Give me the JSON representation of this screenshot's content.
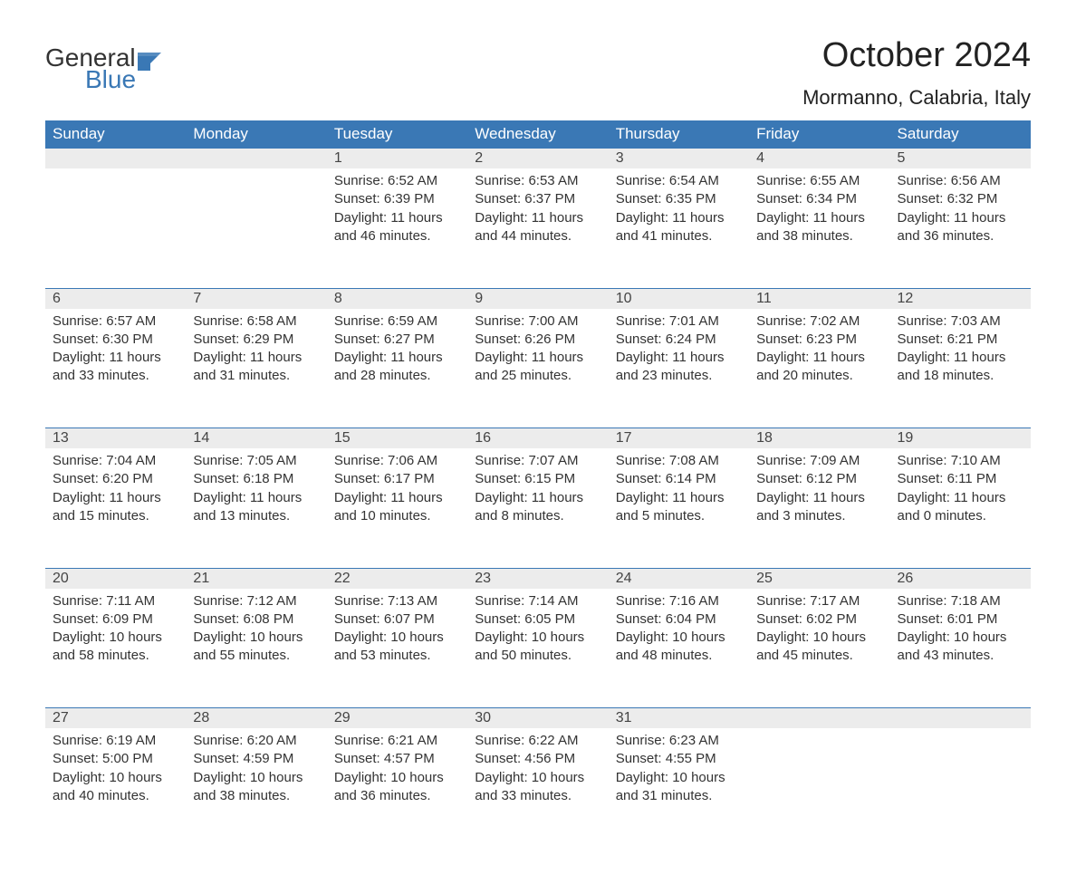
{
  "logo": {
    "word1": "General",
    "word2": "Blue"
  },
  "title": "October 2024",
  "location": "Mormanno, Calabria, Italy",
  "colors": {
    "header_bg": "#3a78b5",
    "header_text": "#ffffff",
    "daynum_bg": "#ececec",
    "border": "#3a78b5",
    "text": "#333333",
    "logo_blue": "#3a78b5",
    "background": "#ffffff"
  },
  "day_headers": [
    "Sunday",
    "Monday",
    "Tuesday",
    "Wednesday",
    "Thursday",
    "Friday",
    "Saturday"
  ],
  "weeks": [
    [
      null,
      null,
      {
        "n": "1",
        "sunrise": "6:52 AM",
        "sunset": "6:39 PM",
        "daylight": "11 hours and 46 minutes."
      },
      {
        "n": "2",
        "sunrise": "6:53 AM",
        "sunset": "6:37 PM",
        "daylight": "11 hours and 44 minutes."
      },
      {
        "n": "3",
        "sunrise": "6:54 AM",
        "sunset": "6:35 PM",
        "daylight": "11 hours and 41 minutes."
      },
      {
        "n": "4",
        "sunrise": "6:55 AM",
        "sunset": "6:34 PM",
        "daylight": "11 hours and 38 minutes."
      },
      {
        "n": "5",
        "sunrise": "6:56 AM",
        "sunset": "6:32 PM",
        "daylight": "11 hours and 36 minutes."
      }
    ],
    [
      {
        "n": "6",
        "sunrise": "6:57 AM",
        "sunset": "6:30 PM",
        "daylight": "11 hours and 33 minutes."
      },
      {
        "n": "7",
        "sunrise": "6:58 AM",
        "sunset": "6:29 PM",
        "daylight": "11 hours and 31 minutes."
      },
      {
        "n": "8",
        "sunrise": "6:59 AM",
        "sunset": "6:27 PM",
        "daylight": "11 hours and 28 minutes."
      },
      {
        "n": "9",
        "sunrise": "7:00 AM",
        "sunset": "6:26 PM",
        "daylight": "11 hours and 25 minutes."
      },
      {
        "n": "10",
        "sunrise": "7:01 AM",
        "sunset": "6:24 PM",
        "daylight": "11 hours and 23 minutes."
      },
      {
        "n": "11",
        "sunrise": "7:02 AM",
        "sunset": "6:23 PM",
        "daylight": "11 hours and 20 minutes."
      },
      {
        "n": "12",
        "sunrise": "7:03 AM",
        "sunset": "6:21 PM",
        "daylight": "11 hours and 18 minutes."
      }
    ],
    [
      {
        "n": "13",
        "sunrise": "7:04 AM",
        "sunset": "6:20 PM",
        "daylight": "11 hours and 15 minutes."
      },
      {
        "n": "14",
        "sunrise": "7:05 AM",
        "sunset": "6:18 PM",
        "daylight": "11 hours and 13 minutes."
      },
      {
        "n": "15",
        "sunrise": "7:06 AM",
        "sunset": "6:17 PM",
        "daylight": "11 hours and 10 minutes."
      },
      {
        "n": "16",
        "sunrise": "7:07 AM",
        "sunset": "6:15 PM",
        "daylight": "11 hours and 8 minutes."
      },
      {
        "n": "17",
        "sunrise": "7:08 AM",
        "sunset": "6:14 PM",
        "daylight": "11 hours and 5 minutes."
      },
      {
        "n": "18",
        "sunrise": "7:09 AM",
        "sunset": "6:12 PM",
        "daylight": "11 hours and 3 minutes."
      },
      {
        "n": "19",
        "sunrise": "7:10 AM",
        "sunset": "6:11 PM",
        "daylight": "11 hours and 0 minutes."
      }
    ],
    [
      {
        "n": "20",
        "sunrise": "7:11 AM",
        "sunset": "6:09 PM",
        "daylight": "10 hours and 58 minutes."
      },
      {
        "n": "21",
        "sunrise": "7:12 AM",
        "sunset": "6:08 PM",
        "daylight": "10 hours and 55 minutes."
      },
      {
        "n": "22",
        "sunrise": "7:13 AM",
        "sunset": "6:07 PM",
        "daylight": "10 hours and 53 minutes."
      },
      {
        "n": "23",
        "sunrise": "7:14 AM",
        "sunset": "6:05 PM",
        "daylight": "10 hours and 50 minutes."
      },
      {
        "n": "24",
        "sunrise": "7:16 AM",
        "sunset": "6:04 PM",
        "daylight": "10 hours and 48 minutes."
      },
      {
        "n": "25",
        "sunrise": "7:17 AM",
        "sunset": "6:02 PM",
        "daylight": "10 hours and 45 minutes."
      },
      {
        "n": "26",
        "sunrise": "7:18 AM",
        "sunset": "6:01 PM",
        "daylight": "10 hours and 43 minutes."
      }
    ],
    [
      {
        "n": "27",
        "sunrise": "6:19 AM",
        "sunset": "5:00 PM",
        "daylight": "10 hours and 40 minutes."
      },
      {
        "n": "28",
        "sunrise": "6:20 AM",
        "sunset": "4:59 PM",
        "daylight": "10 hours and 38 minutes."
      },
      {
        "n": "29",
        "sunrise": "6:21 AM",
        "sunset": "4:57 PM",
        "daylight": "10 hours and 36 minutes."
      },
      {
        "n": "30",
        "sunrise": "6:22 AM",
        "sunset": "4:56 PM",
        "daylight": "10 hours and 33 minutes."
      },
      {
        "n": "31",
        "sunrise": "6:23 AM",
        "sunset": "4:55 PM",
        "daylight": "10 hours and 31 minutes."
      },
      null,
      null
    ]
  ],
  "labels": {
    "sunrise": "Sunrise: ",
    "sunset": "Sunset: ",
    "daylight": "Daylight: "
  }
}
